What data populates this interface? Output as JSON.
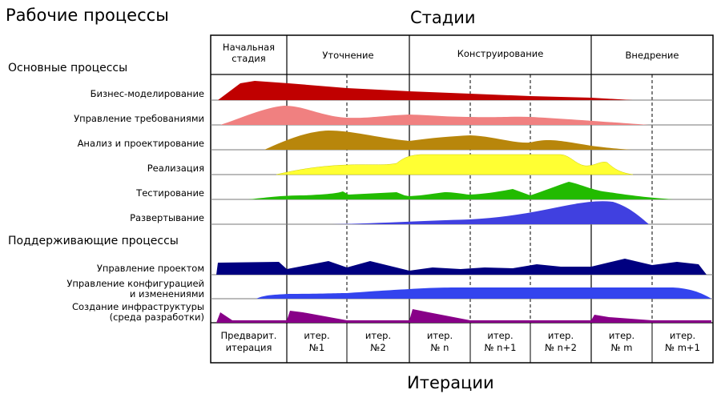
{
  "title_left": "Рабочие процессы",
  "title_top": "Стадии",
  "title_bottom": "Итерации",
  "section_core": "Основные процессы",
  "section_support": "Поддерживающие процессы",
  "phases": [
    {
      "line1": "Начальная",
      "line2": "стадия"
    },
    {
      "line1": "Уточнение",
      "line2": ""
    },
    {
      "line1": "Конструирование",
      "line2": ""
    },
    {
      "line1": "Внедрение",
      "line2": ""
    }
  ],
  "processes": [
    {
      "label1": "Бизнес-моделирование",
      "label2": "",
      "color": "#c00000"
    },
    {
      "label1": "Управление требованиями",
      "label2": "",
      "color": "#f08080"
    },
    {
      "label1": "Анализ и проектирование",
      "label2": "",
      "color": "#b8860b"
    },
    {
      "label1": "Реализация",
      "label2": "",
      "color": "#ffff33"
    },
    {
      "label1": "Тестирование",
      "label2": "",
      "color": "#22bb00"
    },
    {
      "label1": "Развертывание",
      "label2": "",
      "color": "#4040e0"
    },
    {
      "label1": "Управление проектом",
      "label2": "",
      "color": "#000080"
    },
    {
      "label1": "Управление конфигурацией",
      "label2": "и изменениями",
      "color": "#3344ee"
    },
    {
      "label1": "Создание инфраструктуры",
      "label2": "(среда разработки)",
      "color": "#880088"
    }
  ],
  "iterations": [
    {
      "line1": "Предварит.",
      "line2": "итерация"
    },
    {
      "line1": "итер.",
      "line2": "№1"
    },
    {
      "line1": "итер.",
      "line2": "№2"
    },
    {
      "line1": "итер.",
      "line2": "№ n"
    },
    {
      "line1": "итер.",
      "line2": "№ n+1"
    },
    {
      "line1": "итер.",
      "line2": "№ n+2"
    },
    {
      "line1": "итер.",
      "line2": "№ m"
    },
    {
      "line1": "итер.",
      "line2": "№ m+1"
    }
  ]
}
